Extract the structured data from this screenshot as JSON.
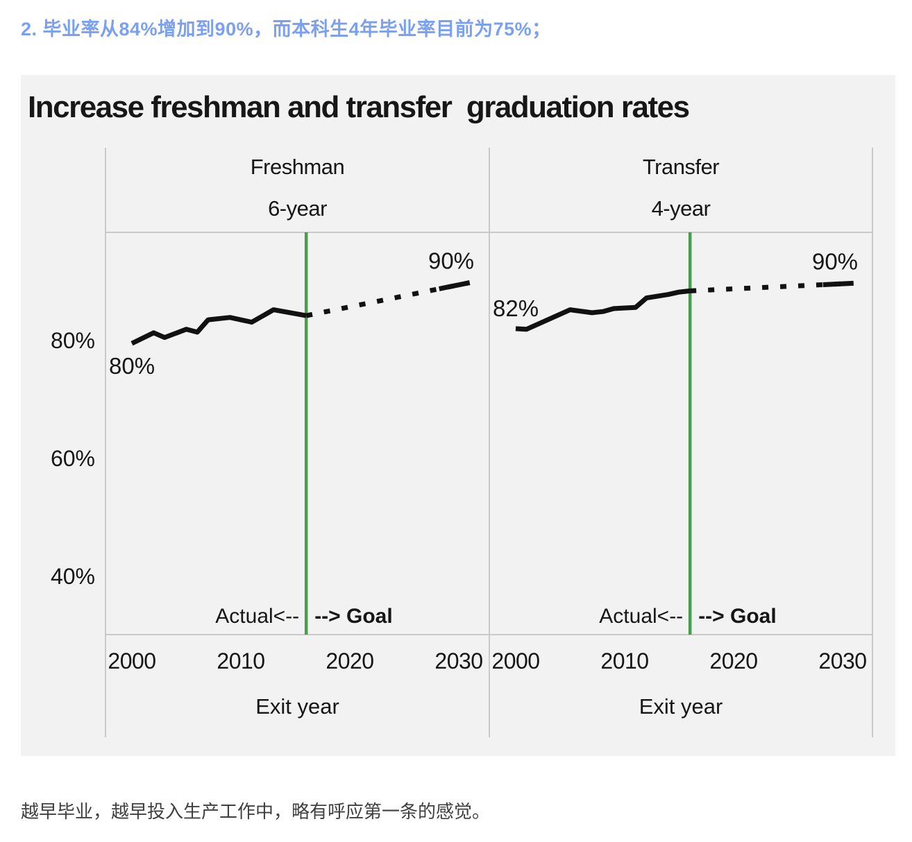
{
  "heading": {
    "text": "2. 毕业率从84%增加到90%，而本科生4年毕业率目前为75%；"
  },
  "footer": {
    "text": "越早毕业，越早投入生产工作中，略有呼应第一条的感觉。"
  },
  "colors": {
    "heading_blue": "#7ba0f2",
    "card_background": "#f2f2f2",
    "grid_gray": "#c9c9c9",
    "line_black": "#111111",
    "goal_green": "#4a9d4a"
  },
  "chart_data": {
    "type": "line",
    "title": "Increase freshman and transfer  graduation rates",
    "xlabel": "Exit year",
    "ylabel": "",
    "x_ticks": [
      2000,
      2010,
      2020,
      2030
    ],
    "y_ticks": [
      {
        "value": 80,
        "label": "80%"
      },
      {
        "value": 60,
        "label": "60%"
      },
      {
        "value": 40,
        "label": "40%"
      }
    ],
    "xlim": [
      1997.6,
      2032.8
    ],
    "ylim": [
      30,
      98
    ],
    "grid": false,
    "divider_year": 2016,
    "actual_annotation": "Actual<--",
    "goal_annotation": "--> Goal",
    "panels": [
      {
        "group": "Freshman",
        "term": "6-year",
        "start_label": "80%",
        "goal_end_label": "90%",
        "actual": {
          "name": "Actual",
          "years": [
            2000,
            2002,
            2003,
            2005,
            2006,
            2007,
            2009,
            2011,
            2013,
            2016
          ],
          "values": [
            79.5,
            81.3,
            80.5,
            81.9,
            81.4,
            83.5,
            83.9,
            83.1,
            85.2,
            84.2
          ]
        },
        "goal": {
          "name": "Goal",
          "years": [
            2016,
            2031
          ],
          "values": [
            84.2,
            89.8
          ]
        }
      },
      {
        "group": "Transfer",
        "term": "4-year",
        "start_label": "82%",
        "goal_end_label": "90%",
        "actual": {
          "name": "Actual",
          "years": [
            2000,
            2001,
            2005,
            2007,
            2008,
            2009,
            2011,
            2012,
            2014,
            2015,
            2016
          ],
          "values": [
            82.0,
            81.9,
            85.2,
            84.7,
            84.9,
            85.4,
            85.6,
            87.2,
            87.8,
            88.2,
            88.4
          ]
        },
        "goal": {
          "name": "Goal",
          "years": [
            2016,
            2031
          ],
          "values": [
            88.4,
            89.7
          ]
        }
      }
    ]
  }
}
